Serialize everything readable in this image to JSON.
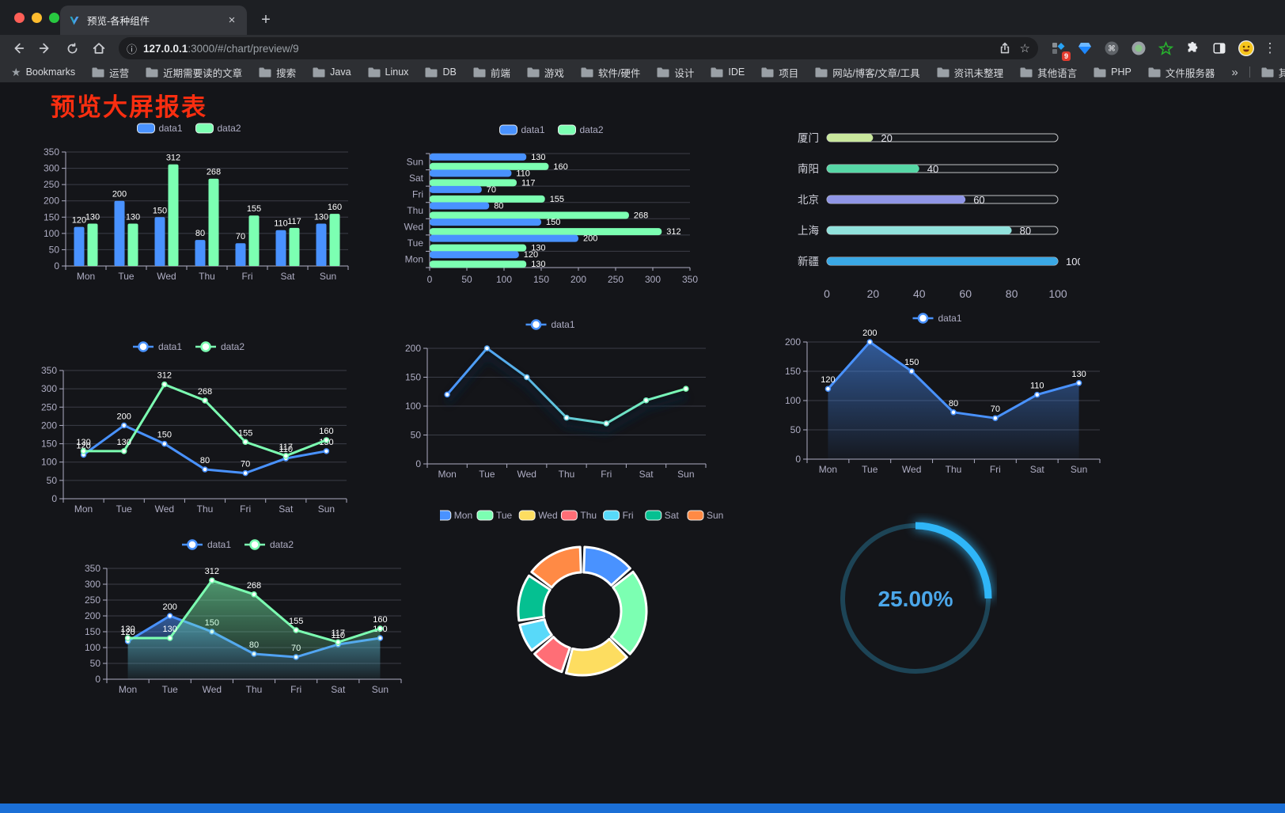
{
  "browser": {
    "tab_title": "预览-各种组件",
    "url_host": "127.0.0.1",
    "url_rest": ":3000/#/chart/preview/9",
    "bookmarks_label": "Bookmarks",
    "bookmarks": [
      "运营",
      "近期需要读的文章",
      "搜索",
      "Java",
      "Linux",
      "DB",
      "前端",
      "游戏",
      "软件/硬件",
      "设计",
      "IDE",
      "项目",
      "网站/博客/文章/工具",
      "资讯未整理",
      "其他语言",
      "PHP",
      "文件服务器"
    ],
    "other_bookmarks": "其他书签",
    "extension_badge": "9"
  },
  "icons": {
    "tab_close": "×",
    "new_tab": "+",
    "kebab": "⋮",
    "overflow": "»",
    "star_outline": "☆",
    "bookmarks_star": "★",
    "info": "ⓘ",
    "command": "⌘"
  },
  "page": {
    "title": "预览大屏报表",
    "title_color": "#fa2e10",
    "footer_color": "#1b6fd6"
  },
  "chart_data": [
    {
      "type": "bar",
      "title": "grouped vertical bar chart",
      "categories": [
        "Mon",
        "Tue",
        "Wed",
        "Thu",
        "Fri",
        "Sat",
        "Sun"
      ],
      "series": [
        {
          "name": "data1",
          "color": "#4992ff",
          "values": [
            120,
            200,
            150,
            80,
            70,
            110,
            130
          ]
        },
        {
          "name": "data2",
          "color": "#7cffb2",
          "values": [
            130,
            130,
            312,
            268,
            155,
            117,
            160
          ]
        }
      ],
      "ylim": [
        0,
        350
      ],
      "ystep": 50,
      "labels": true,
      "legend_position": "top",
      "grid": true
    },
    {
      "type": "bar-horizontal",
      "title": "grouped horizontal bar chart",
      "categories": [
        "Mon",
        "Tue",
        "Wed",
        "Thu",
        "Fri",
        "Sat",
        "Sun"
      ],
      "series": [
        {
          "name": "data1",
          "color": "#4992ff",
          "values": [
            120,
            200,
            150,
            80,
            70,
            110,
            130
          ]
        },
        {
          "name": "data2",
          "color": "#7cffb2",
          "values": [
            130,
            130,
            312,
            268,
            155,
            117,
            160
          ]
        }
      ],
      "xlim": [
        0,
        350
      ],
      "xstep": 50,
      "labels": true,
      "legend_position": "top",
      "grid": true
    },
    {
      "type": "progress",
      "title": "city progress bars",
      "categories": [
        "厦门",
        "南阳",
        "北京",
        "上海",
        "新疆"
      ],
      "values": [
        20,
        40,
        60,
        80,
        100
      ],
      "colors": [
        "#c9e79d",
        "#57d7a6",
        "#9096e6",
        "#91e2dc",
        "#3aa8e5"
      ],
      "xlim": [
        0,
        100
      ],
      "xticks": [
        0,
        20,
        40,
        60,
        80,
        100
      ]
    },
    {
      "type": "line",
      "title": "dual line chart",
      "categories": [
        "Mon",
        "Tue",
        "Wed",
        "Thu",
        "Fri",
        "Sat",
        "Sun"
      ],
      "series": [
        {
          "name": "data1",
          "color": "#4992ff",
          "values": [
            120,
            200,
            150,
            80,
            70,
            110,
            130
          ]
        },
        {
          "name": "data2",
          "color": "#7cffb2",
          "values": [
            130,
            130,
            312,
            268,
            155,
            117,
            160
          ]
        }
      ],
      "ylim": [
        0,
        350
      ],
      "ystep": 50,
      "labels": true,
      "legend_position": "top",
      "grid": true
    },
    {
      "type": "line",
      "title": "gradient line chart",
      "categories": [
        "Mon",
        "Tue",
        "Wed",
        "Thu",
        "Fri",
        "Sat",
        "Sun"
      ],
      "series": [
        {
          "name": "data1",
          "color": "#4992ff",
          "values": [
            120,
            200,
            150,
            80,
            70,
            110,
            130
          ]
        }
      ],
      "ylim": [
        0,
        200
      ],
      "ystep": 50,
      "labels": false,
      "gradient": true,
      "shadow": true,
      "gradient_colors": [
        "#4992ff",
        "#7cffb2"
      ],
      "legend_position": "top",
      "grid": true
    },
    {
      "type": "area",
      "title": "single area chart",
      "categories": [
        "Mon",
        "Tue",
        "Wed",
        "Thu",
        "Fri",
        "Sat",
        "Sun"
      ],
      "series": [
        {
          "name": "data1",
          "color": "#4992ff",
          "values": [
            120,
            200,
            150,
            80,
            70,
            110,
            130
          ]
        }
      ],
      "ylim": [
        0,
        200
      ],
      "ystep": 50,
      "labels": true,
      "legend_position": "top",
      "grid": true
    },
    {
      "type": "area",
      "title": "dual area chart",
      "categories": [
        "Mon",
        "Tue",
        "Wed",
        "Thu",
        "Fri",
        "Sat",
        "Sun"
      ],
      "series": [
        {
          "name": "data1",
          "color": "#4992ff",
          "values": [
            120,
            200,
            150,
            80,
            70,
            110,
            130
          ]
        },
        {
          "name": "data2",
          "color": "#7cffb2",
          "values": [
            130,
            130,
            312,
            268,
            155,
            117,
            160
          ]
        }
      ],
      "ylim": [
        0,
        350
      ],
      "ystep": 50,
      "labels": true,
      "legend_position": "top",
      "grid": true
    },
    {
      "type": "pie",
      "title": "donut chart",
      "categories": [
        "Mon",
        "Tue",
        "Wed",
        "Thu",
        "Fri",
        "Sat",
        "Sun"
      ],
      "values": [
        120,
        200,
        150,
        80,
        70,
        110,
        130
      ],
      "colors": [
        "#4992ff",
        "#7cffb2",
        "#fddd60",
        "#ff6e76",
        "#58d9f9",
        "#05c091",
        "#ff8a45"
      ],
      "inner_radius_ratio": 0.6,
      "legend_position": "top"
    },
    {
      "type": "gauge",
      "title": "progress ring",
      "value": 25,
      "label": "25.00%",
      "color": "#2fb6f8",
      "track_color": "#1d4456",
      "text_color": "#4ba7ea"
    }
  ]
}
